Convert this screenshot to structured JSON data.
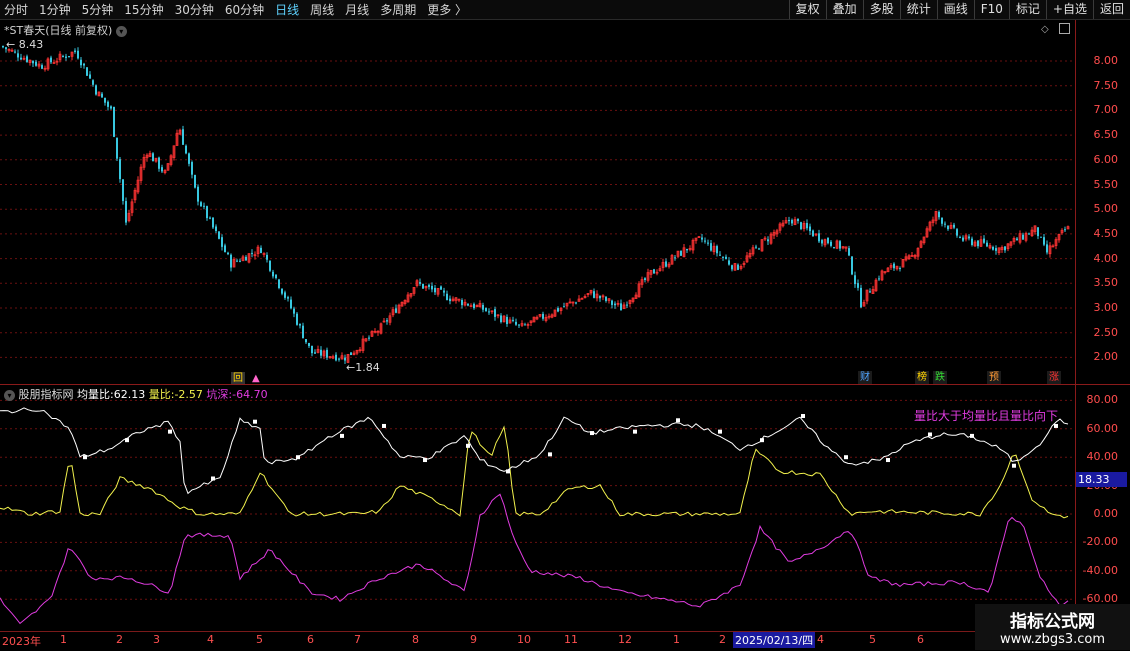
{
  "toolbar": {
    "periods": [
      "分时",
      "1分钟",
      "5分钟",
      "15分钟",
      "30分钟",
      "60分钟",
      "日线",
      "周线",
      "月线",
      "多周期",
      "更多 〉"
    ],
    "active_period": "日线",
    "right_buttons": [
      "复权",
      "叠加",
      "多股",
      "统计",
      "画线",
      "F10",
      "标记",
      "+自选",
      "返回"
    ]
  },
  "price_panel": {
    "title": "*ST春天(日线 前复权)",
    "high_label": "8.43",
    "low_label": "1.84",
    "y_ticks": [
      "8.00",
      "7.50",
      "7.00",
      "6.50",
      "6.00",
      "5.50",
      "5.00",
      "4.50",
      "4.00",
      "3.50",
      "3.00",
      "2.50",
      "2.00"
    ],
    "markers": [
      {
        "text": "回",
        "color": "#ffd400",
        "bg": "#333"
      },
      {
        "text": "▲",
        "color": "#ff66cc",
        "bg": "transparent"
      },
      {
        "text": "财",
        "color": "#4da3ff",
        "bg": "#1b1b1b"
      },
      {
        "text": "榜",
        "color": "#ffd400",
        "bg": "#1b1b1b"
      },
      {
        "text": "跌",
        "color": "#33dd33",
        "bg": "#1b1b1b"
      },
      {
        "text": "预",
        "color": "#ff9933",
        "bg": "#1b1b1b"
      },
      {
        "text": "涨",
        "color": "#ff3333",
        "bg": "#1b1b1b"
      }
    ]
  },
  "indicator_panel": {
    "name": "股朋指标网",
    "avg_label": "均量比:",
    "avg_value": "62.13",
    "ratio_label": "量比:",
    "ratio_value": "-2.57",
    "pit_label": "坑深:",
    "pit_value": "-64.70",
    "annotation": "量比大于均量比且量比向下",
    "current_value_box": "18.33",
    "y_ticks": [
      "80.00",
      "60.00",
      "40.00",
      "20.00",
      "0.00",
      "-20.00",
      "-40.00",
      "-60.00"
    ]
  },
  "date_axis": {
    "labels": [
      "2023年",
      "1",
      "2",
      "3",
      "4",
      "5",
      "6",
      "7",
      "8",
      "9",
      "10",
      "11",
      "12",
      "1",
      "2",
      "2025/02/13/四",
      "4",
      "5",
      "6"
    ]
  },
  "watermark": {
    "title": "指标公式网",
    "url": "www.zbgs3.com"
  },
  "colors": {
    "up": "#ff3333",
    "down": "#38c8e0",
    "white_line": "#ffffff",
    "yellow_line": "#f2f24d",
    "magenta_line": "#e03ce0",
    "grid": "#6a1010"
  }
}
